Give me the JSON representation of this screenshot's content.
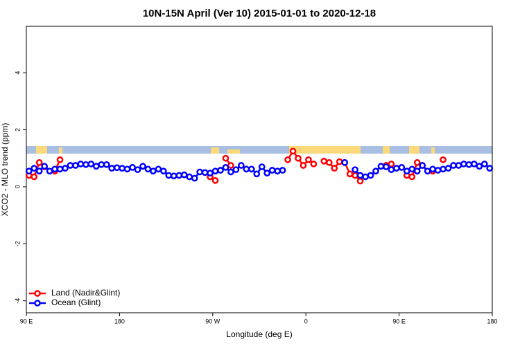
{
  "chart_data": {
    "type": "line",
    "title": "10N-15N April (Ver 10)   2015-01-01 to 2020-12-18",
    "x_label": "Longitude (deg E)",
    "y_label": "XCO2 - MLO trend (ppm)",
    "x": [
      92.5,
      97.5,
      102.5,
      107.5,
      112.5,
      117.5,
      122.5,
      127.5,
      132.5,
      137.5,
      142.5,
      147.5,
      152.5,
      157.5,
      162.5,
      167.5,
      172.5,
      177.5,
      182.5,
      187.5,
      192.5,
      197.5,
      202.5,
      207.5,
      212.5,
      217.5,
      222.5,
      227.5,
      232.5,
      237.5,
      242.5,
      247.5,
      252.5,
      257.5,
      262.5,
      267.5,
      272.5,
      277.5,
      282.5,
      287.5,
      292.5,
      297.5,
      302.5,
      307.5,
      312.5,
      317.5,
      322.5,
      327.5,
      332.5,
      337.5,
      342.5,
      347.5,
      352.5,
      357.5,
      362.5,
      367.5,
      372.5,
      377.5,
      382.5,
      387.5,
      392.5,
      397.5,
      402.5,
      407.5,
      412.5,
      417.5,
      422.5,
      427.5,
      432.5,
      437.5,
      442.5,
      447.5,
      452.5,
      457.5,
      462.5,
      467.5,
      472.5,
      477.5,
      482.5,
      487.5,
      492.5,
      497.5,
      502.5,
      507.5,
      512.5,
      517.5,
      522.5,
      527.5,
      532.5,
      537.5
    ],
    "series": [
      {
        "name": "Land (Nadir&Glint)",
        "color": "#ff0000",
        "values": [
          0.4,
          0.35,
          0.85,
          0.7,
          null,
          0.55,
          0.95,
          null,
          null,
          null,
          null,
          null,
          null,
          null,
          null,
          null,
          null,
          null,
          null,
          null,
          null,
          null,
          null,
          null,
          null,
          null,
          null,
          null,
          null,
          null,
          null,
          null,
          null,
          null,
          null,
          0.35,
          0.22,
          null,
          1.0,
          0.75,
          null,
          null,
          null,
          null,
          null,
          null,
          null,
          null,
          null,
          null,
          0.95,
          1.25,
          1.0,
          0.75,
          0.95,
          0.8,
          null,
          0.9,
          0.85,
          0.65,
          0.88,
          0.85,
          0.45,
          0.4,
          0.2,
          null,
          null,
          null,
          null,
          0.75,
          0.8,
          null,
          null,
          0.4,
          0.35,
          0.85,
          0.75,
          null,
          0.55,
          null,
          0.95,
          null,
          null,
          null,
          null,
          null,
          null,
          null,
          null,
          null
        ]
      },
      {
        "name": "Ocean (Glint)",
        "color": "#0000ff",
        "values": [
          0.55,
          0.65,
          0.55,
          0.72,
          0.55,
          0.62,
          0.62,
          0.65,
          0.75,
          0.75,
          0.8,
          0.78,
          0.8,
          0.72,
          0.78,
          0.78,
          0.65,
          0.67,
          0.65,
          0.62,
          0.68,
          0.6,
          0.72,
          0.62,
          0.55,
          0.62,
          0.55,
          0.4,
          0.38,
          0.4,
          0.42,
          0.35,
          0.3,
          0.52,
          0.5,
          0.48,
          0.55,
          0.58,
          0.68,
          0.52,
          0.6,
          0.75,
          0.62,
          0.62,
          0.45,
          0.7,
          0.48,
          0.58,
          0.55,
          0.58,
          null,
          null,
          null,
          null,
          null,
          null,
          null,
          null,
          null,
          null,
          null,
          0.85,
          null,
          0.6,
          0.4,
          0.35,
          0.4,
          0.55,
          0.72,
          0.7,
          0.6,
          0.65,
          0.68,
          0.55,
          0.62,
          0.55,
          0.75,
          0.55,
          0.62,
          0.58,
          0.62,
          0.65,
          0.75,
          0.75,
          0.8,
          0.78,
          0.8,
          0.72,
          0.8,
          0.65
        ]
      }
    ],
    "xlim": [
      90,
      540
    ],
    "xticks": [
      {
        "value": 90,
        "label": "90 E"
      },
      {
        "value": 180,
        "label": "180"
      },
      {
        "value": 270,
        "label": "90 W"
      },
      {
        "value": 360,
        "label": "0"
      },
      {
        "value": 450,
        "label": "90 E"
      },
      {
        "value": 540,
        "label": "180"
      }
    ],
    "ylim": [
      -4.42,
      5.63
    ],
    "yticks": [
      -4,
      -2,
      0,
      2,
      4
    ],
    "legend": "bottom-left"
  }
}
